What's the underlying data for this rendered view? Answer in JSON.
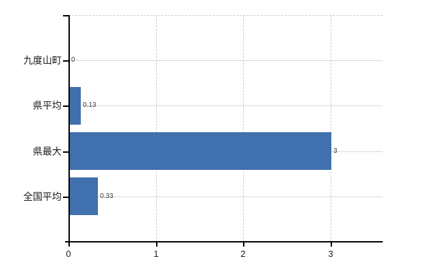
{
  "chart_data": {
    "type": "bar",
    "orientation": "horizontal",
    "title": "",
    "xlabel": "",
    "ylabel": "",
    "categories": [
      "九度山町",
      "県平均",
      "県最大",
      "全国平均"
    ],
    "values": [
      0,
      0.13,
      3,
      0.33
    ],
    "value_labels": [
      "0",
      "0.13",
      "3",
      "0.33"
    ],
    "x_tick_values": [
      0,
      1,
      2,
      3
    ],
    "x_tick_labels": [
      "0",
      "1",
      "2",
      "3"
    ],
    "xlim": [
      0,
      3.6
    ],
    "grid": true,
    "legend": null,
    "colors": {
      "bar": "#4070ad",
      "axis": "#000000",
      "grid_solid": "#d5d9d1",
      "grid_dashed": "#cccccc",
      "category_label": "#1a1a1a",
      "tick_label": "#1a1a1a",
      "value_label": "#3a3a3a",
      "background": "#ffffff"
    }
  }
}
